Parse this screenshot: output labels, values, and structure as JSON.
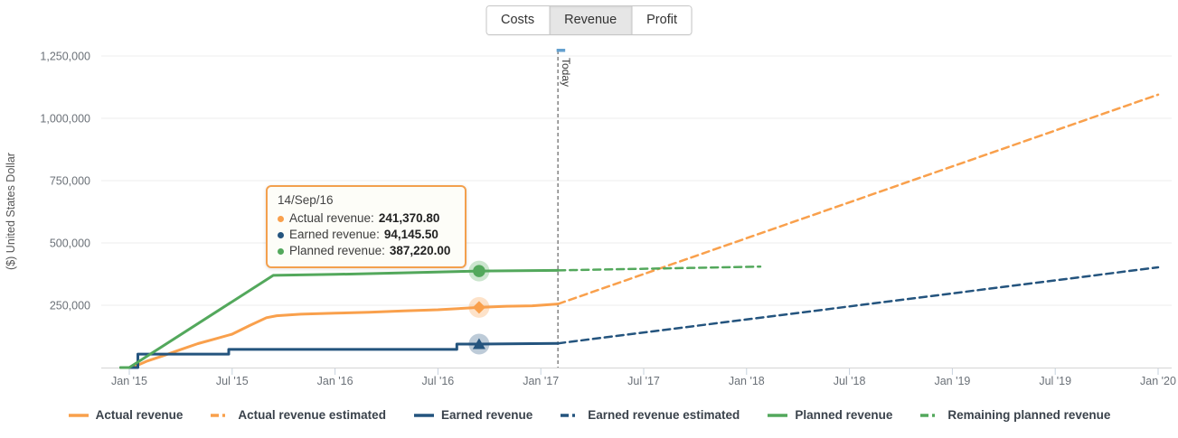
{
  "tabs": {
    "items": [
      {
        "label": "Costs",
        "selected": false
      },
      {
        "label": "Revenue",
        "selected": true
      },
      {
        "label": "Profit",
        "selected": false
      }
    ]
  },
  "y_axis_title": "($) United States Dollar",
  "today_label": "Today",
  "tooltip": {
    "title": "14/Sep/16",
    "rows": [
      {
        "label": "Actual revenue:",
        "value": "241,370.80",
        "color": "#f9a04c"
      },
      {
        "label": "Earned revenue:",
        "value": "94,145.50",
        "color": "#24547e"
      },
      {
        "label": "Planned revenue:",
        "value": "387,220.00",
        "color": "#53a85c"
      }
    ]
  },
  "legend": {
    "items": [
      {
        "label": "Actual revenue",
        "color": "#f9a04c",
        "style": "solid"
      },
      {
        "label": "Actual revenue estimated",
        "color": "#f9a04c",
        "style": "dashed"
      },
      {
        "label": "Earned revenue",
        "color": "#24547e",
        "style": "solid"
      },
      {
        "label": "Earned revenue estimated",
        "color": "#24547e",
        "style": "dashed"
      },
      {
        "label": "Planned revenue",
        "color": "#53a85c",
        "style": "solid"
      },
      {
        "label": "Remaining planned revenue",
        "color": "#53a85c",
        "style": "dashed"
      }
    ]
  },
  "colors": {
    "gridline": "#ececec",
    "axis_line": "#d4d4d4",
    "tick_mark": "#c6d2de",
    "tick_text": "#6b7178",
    "today_line": "#8a8a8a",
    "today_cap": "#64a0cf",
    "today_text": "#3c3c3c"
  },
  "chart_data": {
    "type": "line",
    "title": "",
    "ylabel": "($) United States Dollar",
    "x_unit": "months since Jan 2015",
    "ylim": [
      0,
      1293000
    ],
    "grid": "horizontal",
    "legend_position": "bottom",
    "x_ticks": [
      {
        "label": "Jan '15",
        "m": 0
      },
      {
        "label": "Jul '15",
        "m": 6
      },
      {
        "label": "Jan '16",
        "m": 12
      },
      {
        "label": "Jul '16",
        "m": 18
      },
      {
        "label": "Jan '17",
        "m": 24
      },
      {
        "label": "Jul '17",
        "m": 30
      },
      {
        "label": "Jan '18",
        "m": 36
      },
      {
        "label": "Jul '18",
        "m": 42
      },
      {
        "label": "Jan '19",
        "m": 48
      },
      {
        "label": "Jul '19",
        "m": 54
      },
      {
        "label": "Jan '20",
        "m": 60
      }
    ],
    "y_ticks": [
      {
        "label": "250,000",
        "v": 250000
      },
      {
        "label": "500,000",
        "v": 500000
      },
      {
        "label": "750,000",
        "v": 750000
      },
      {
        "label": "1,000,000",
        "v": 1000000
      },
      {
        "label": "1,250,000",
        "v": 1250000
      }
    ],
    "today_month": 25.0,
    "series": [
      {
        "name": "Actual revenue",
        "style": "solid",
        "color": "#f9a04c",
        "points": [
          [
            -0.5,
            0
          ],
          [
            0,
            0
          ],
          [
            0.5,
            10000
          ],
          [
            1,
            25000
          ],
          [
            2,
            48000
          ],
          [
            3,
            72000
          ],
          [
            4,
            96000
          ],
          [
            5,
            115000
          ],
          [
            6,
            134000
          ],
          [
            7,
            168000
          ],
          [
            8,
            200000
          ],
          [
            8.6,
            208000
          ],
          [
            10,
            214000
          ],
          [
            12,
            218000
          ],
          [
            14,
            222000
          ],
          [
            16,
            227000
          ],
          [
            18,
            232000
          ],
          [
            20.4,
            241371
          ],
          [
            22,
            246000
          ],
          [
            23.5,
            248000
          ],
          [
            25,
            255000
          ]
        ]
      },
      {
        "name": "Actual revenue estimated",
        "style": "dashed",
        "color": "#f9a04c",
        "points": [
          [
            25,
            255000
          ],
          [
            60,
            1095000
          ]
        ]
      },
      {
        "name": "Earned revenue",
        "style": "solid",
        "color": "#24547e",
        "points": [
          [
            -0.5,
            0
          ],
          [
            0.5,
            0
          ],
          [
            0.5,
            54000
          ],
          [
            5.8,
            54000
          ],
          [
            5.8,
            73000
          ],
          [
            19.1,
            73000
          ],
          [
            19.1,
            94146
          ],
          [
            20.4,
            94146
          ],
          [
            25,
            97000
          ]
        ]
      },
      {
        "name": "Earned revenue estimated",
        "style": "dashed",
        "color": "#24547e",
        "points": [
          [
            25,
            97000
          ],
          [
            60,
            402000
          ]
        ]
      },
      {
        "name": "Planned revenue",
        "style": "solid",
        "color": "#53a85c",
        "points": [
          [
            -0.5,
            0
          ],
          [
            0,
            0
          ],
          [
            8.4,
            370000
          ],
          [
            12,
            374000
          ],
          [
            16,
            380000
          ],
          [
            20.4,
            387220
          ],
          [
            25,
            390000
          ]
        ]
      },
      {
        "name": "Remaining planned revenue",
        "style": "dashed",
        "color": "#53a85c",
        "points": [
          [
            25,
            390000
          ],
          [
            36.8,
            405000
          ]
        ]
      }
    ],
    "hover_markers": {
      "date": "14/Sep/16",
      "month": 20.4,
      "points": [
        {
          "series": "Planned revenue",
          "value": 387220.0,
          "shape": "circle",
          "color": "#53a85c"
        },
        {
          "series": "Actual revenue",
          "value": 241370.8,
          "shape": "diamond",
          "color": "#f9a04c"
        },
        {
          "series": "Earned revenue",
          "value": 94145.5,
          "shape": "triangle",
          "color": "#24547e"
        }
      ]
    }
  }
}
